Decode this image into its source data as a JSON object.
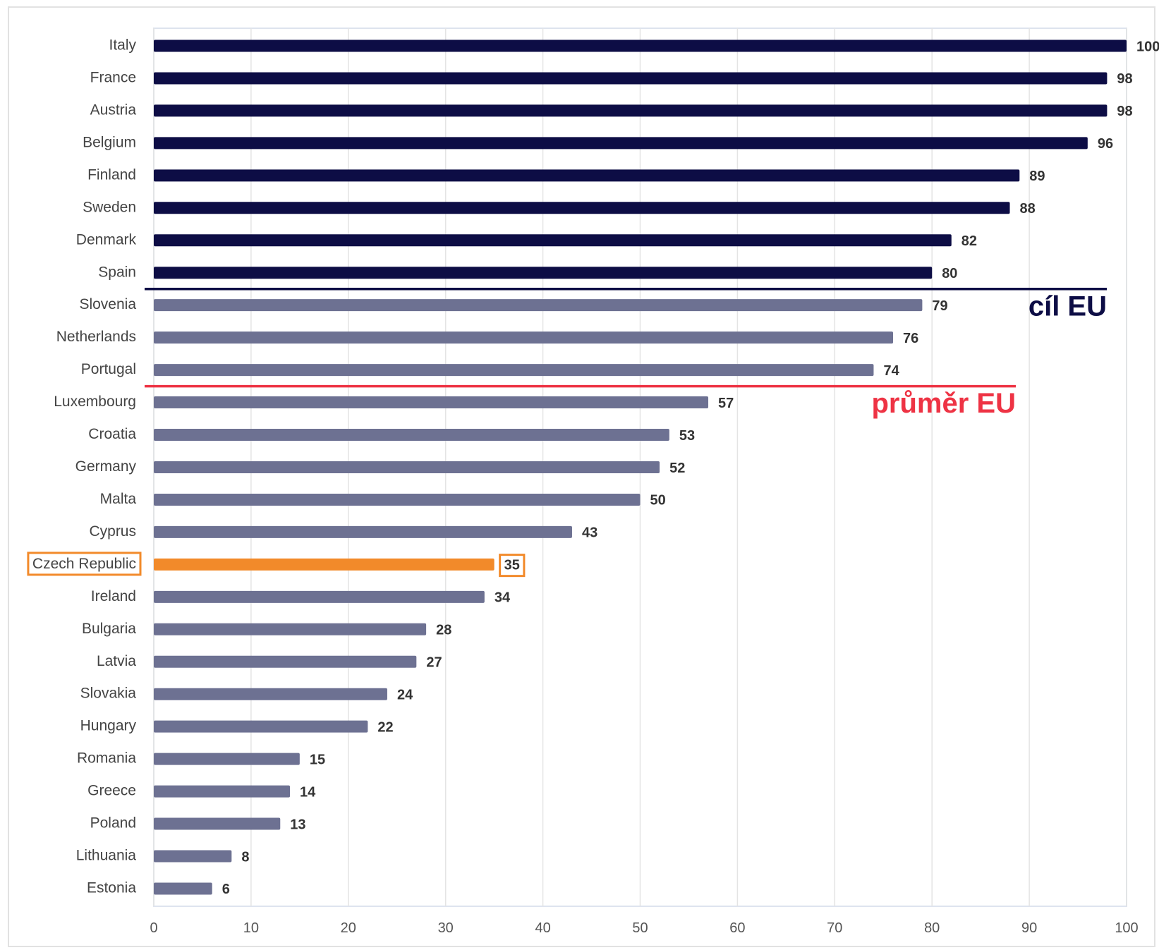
{
  "chart_data": {
    "type": "bar",
    "orientation": "horizontal",
    "categories": [
      "Italy",
      "France",
      "Austria",
      "Belgium",
      "Finland",
      "Sweden",
      "Denmark",
      "Spain",
      "Slovenia",
      "Netherlands",
      "Portugal",
      "Luxembourg",
      "Croatia",
      "Germany",
      "Malta",
      "Cyprus",
      "Czech Republic",
      "Ireland",
      "Bulgaria",
      "Latvia",
      "Slovakia",
      "Hungary",
      "Romania",
      "Greece",
      "Poland",
      "Lithuania",
      "Estonia"
    ],
    "values": [
      100,
      98,
      98,
      96,
      89,
      88,
      82,
      80,
      79,
      76,
      74,
      57,
      53,
      52,
      50,
      43,
      35,
      34,
      28,
      27,
      24,
      22,
      15,
      14,
      13,
      8,
      6
    ],
    "colors": [
      "#0d0d45",
      "#0d0d45",
      "#0d0d45",
      "#0d0d45",
      "#0d0d45",
      "#0d0d45",
      "#0d0d45",
      "#0d0d45",
      "#6d7192",
      "#6d7192",
      "#6d7192",
      "#6d7192",
      "#6d7192",
      "#6d7192",
      "#6d7192",
      "#6d7192",
      "#f28a2a",
      "#6d7192",
      "#6d7192",
      "#6d7192",
      "#6d7192",
      "#6d7192",
      "#6d7192",
      "#6d7192",
      "#6d7192",
      "#6d7192",
      "#6d7192"
    ],
    "highlight": {
      "index": 16,
      "color": "#f28a2a"
    },
    "annotations": [
      {
        "text": "cíl EU",
        "color": "#0d0d45",
        "after_index": 7
      },
      {
        "text": "průměr EU",
        "color": "#ee3344",
        "after_index": 10
      }
    ],
    "xlim": [
      0,
      100
    ],
    "xticks": [
      0,
      10,
      20,
      30,
      40,
      50,
      60,
      70,
      80,
      90,
      100
    ],
    "grid": true
  }
}
